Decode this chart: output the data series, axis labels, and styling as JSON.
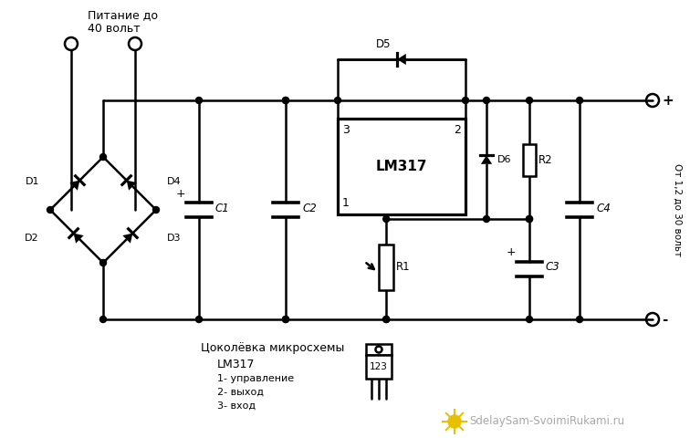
{
  "background_color": "#ffffff",
  "line_color": "#000000",
  "line_width": 1.8,
  "fig_width": 7.56,
  "fig_height": 4.91,
  "dpi": 100,
  "text_питание": "Питание до\n40 вольт",
  "text_output": "От 1,2 до 30 вольт",
  "text_lm317": "LM317",
  "text_pin1": "1",
  "text_pin2": "2",
  "text_pin3": "3",
  "text_d1": "D1",
  "text_d2": "D2",
  "text_d3": "D3",
  "text_d4": "D4",
  "text_d5": "D5",
  "text_d6": "D6",
  "text_c1": "C1",
  "text_c2": "C2",
  "text_c3": "C3",
  "text_c4": "C4",
  "text_r1": "R1",
  "text_r2": "R2",
  "text_plus": "+",
  "text_minus": "-",
  "text_pinout_title": "Цоколёвка микросхемы",
  "text_pinout_lm": "LM317",
  "text_pinout_1": "1- управление",
  "text_pinout_2": "2- выход",
  "text_pinout_3": "3- вход",
  "text_watermark": "SdelaySam-SvoimiRukami.ru"
}
